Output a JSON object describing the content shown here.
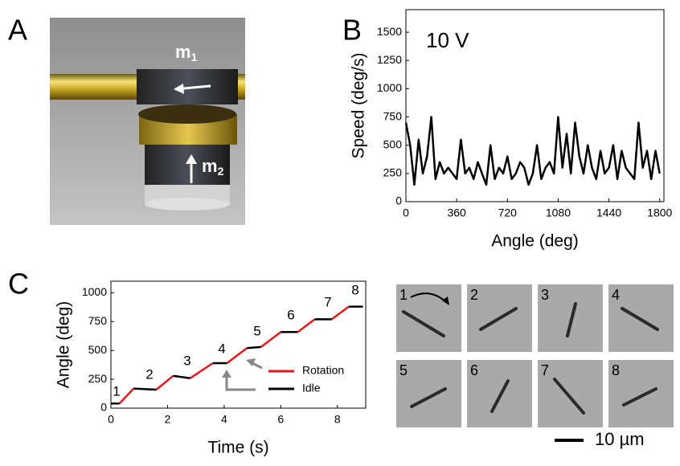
{
  "panels": {
    "labels": [
      "A",
      "B",
      "C"
    ]
  },
  "illustration": {
    "m1": {
      "base": "m",
      "sub": "1"
    },
    "m2": {
      "base": "m",
      "sub": "2"
    }
  },
  "chart_data": [
    {
      "type": "line",
      "annotation": "10 V",
      "xlabel": "Angle (deg)",
      "ylabel": "Speed (deg/s)",
      "color": "#000000",
      "x": [
        0,
        30,
        60,
        90,
        120,
        150,
        180,
        210,
        240,
        270,
        300,
        330,
        360,
        390,
        420,
        450,
        480,
        510,
        540,
        570,
        600,
        630,
        660,
        690,
        720,
        750,
        780,
        810,
        840,
        870,
        900,
        930,
        960,
        990,
        1020,
        1050,
        1080,
        1110,
        1140,
        1170,
        1200,
        1230,
        1260,
        1290,
        1320,
        1350,
        1380,
        1410,
        1440,
        1470,
        1500,
        1530,
        1560,
        1590,
        1620,
        1650,
        1680,
        1710,
        1740,
        1770,
        1800
      ],
      "values": [
        700,
        500,
        150,
        550,
        250,
        400,
        750,
        200,
        350,
        250,
        300,
        250,
        200,
        550,
        250,
        300,
        200,
        350,
        250,
        150,
        500,
        200,
        300,
        250,
        400,
        200,
        250,
        350,
        300,
        150,
        250,
        500,
        200,
        300,
        350,
        250,
        750,
        300,
        600,
        250,
        700,
        400,
        250,
        500,
        300,
        200,
        450,
        250,
        300,
        500,
        200,
        450,
        300,
        250,
        200,
        700,
        300,
        450,
        200,
        450,
        250
      ],
      "xlim": [
        0,
        1830
      ],
      "ylim": [
        0,
        1700
      ],
      "xticks": [
        0,
        360,
        720,
        1080,
        1440,
        1800
      ],
      "yticks": [
        0,
        250,
        500,
        750,
        1000,
        1250,
        1500
      ]
    },
    {
      "type": "line",
      "xlabel": "Time (s)",
      "ylabel": "Angle (deg)",
      "legend": "lower right",
      "series": [
        {
          "name": "Rotation",
          "color": "#e8161b",
          "x": [
            0.3,
            0.8,
            null,
            1.6,
            2.2,
            null,
            2.8,
            3.6,
            null,
            4.1,
            4.8,
            null,
            5.3,
            6.0,
            null,
            6.6,
            7.2,
            null,
            7.8,
            8.4
          ],
          "values": [
            40,
            170,
            null,
            160,
            280,
            null,
            260,
            390,
            null,
            390,
            520,
            null,
            530,
            660,
            null,
            660,
            770,
            null,
            770,
            880
          ]
        },
        {
          "name": "Idle",
          "color": "#000000",
          "x": [
            0,
            0.3,
            null,
            0.8,
            1.6,
            null,
            2.2,
            2.8,
            null,
            3.6,
            4.1,
            null,
            4.8,
            5.3,
            null,
            6.0,
            6.6,
            null,
            7.2,
            7.8,
            null,
            8.4,
            8.9
          ],
          "values": [
            40,
            40,
            null,
            170,
            160,
            null,
            280,
            260,
            null,
            390,
            390,
            null,
            520,
            530,
            null,
            660,
            660,
            null,
            770,
            770,
            null,
            880,
            880
          ]
        }
      ],
      "annotations": [
        "1",
        "2",
        "3",
        "4",
        "5",
        "6",
        "7",
        "8"
      ],
      "xlim": [
        0,
        9
      ],
      "ylim": [
        0,
        1100
      ],
      "xticks": [
        0,
        2,
        4,
        6,
        8
      ],
      "yticks": [
        0,
        250,
        500,
        750,
        1000
      ]
    }
  ],
  "micrographs": {
    "tiles": [
      "1",
      "2",
      "3",
      "4",
      "5",
      "6",
      "7",
      "8"
    ],
    "scale_bar": "10 µm"
  }
}
